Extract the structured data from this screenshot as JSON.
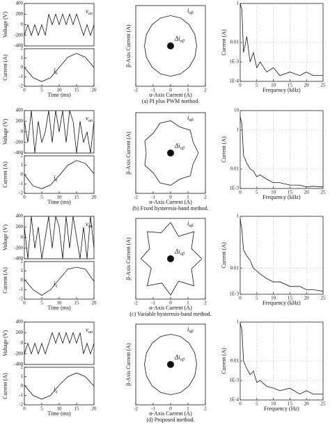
{
  "chart_data": [
    {
      "type": "line",
      "ylabel": "Voltage (V)",
      "xlim": [
        0,
        20
      ],
      "ylim": [
        -400,
        400
      ],
      "yticks": [
        -400,
        -200,
        0,
        200,
        400
      ],
      "series": [
        {
          "color": "#111",
          "x": [
            0,
            1,
            2,
            3,
            4,
            5,
            6,
            7,
            8,
            9,
            10,
            11,
            12,
            13,
            14,
            15,
            16,
            17,
            18,
            19,
            20
          ],
          "values": [
            -200,
            0,
            -200,
            0,
            -200,
            0,
            -200,
            200,
            0,
            200,
            0,
            200,
            0,
            200,
            0,
            200,
            0,
            -200,
            0,
            -200,
            0
          ]
        }
      ],
      "annotations": [
        {
          "text": "v",
          "sub": "an"
        }
      ]
    },
    {
      "type": "line",
      "ylabel": "Current (A)",
      "xlabel": "Time (ms)",
      "xlim": [
        0,
        20
      ],
      "ylim": [
        -2,
        2
      ],
      "xticks": [
        0,
        5,
        10,
        15,
        20
      ],
      "yticks": [
        -2,
        -1,
        0,
        1,
        2
      ],
      "series": [
        {
          "color": "#111",
          "x": [
            0,
            2.5,
            5,
            7.5,
            10,
            12.5,
            15,
            17.5,
            20
          ],
          "values": [
            0,
            -1.1,
            -1.5,
            -1.1,
            0,
            1.1,
            1.5,
            1.1,
            0
          ]
        }
      ],
      "annotations": [
        {
          "text": "i",
          "sub": "a"
        }
      ]
    },
    {
      "type": "line",
      "xlabel": "α-Axis Current (A)",
      "ylabel": "β-Axis Current (A)",
      "xlim": [
        -2,
        2
      ],
      "ylim": [
        -2,
        2
      ],
      "xticks": [
        -2,
        -1,
        0,
        1,
        2
      ],
      "series": [
        {
          "color": "#111",
          "x": [
            1.5,
            1.39,
            1.06,
            0.57,
            0,
            -0.57,
            -1.06,
            -1.39,
            -1.5,
            -1.39,
            -1.06,
            -0.57,
            0,
            0.57,
            1.06,
            1.39,
            1.5
          ],
          "values": [
            0,
            0.57,
            1.06,
            1.39,
            1.5,
            1.39,
            1.06,
            0.57,
            0,
            -0.57,
            -1.06,
            -1.39,
            -1.5,
            -1.39,
            -1.06,
            -0.57,
            0
          ]
        },
        {
          "color": "#111",
          "x": [
            0
          ],
          "values": [
            0
          ]
        }
      ],
      "annotations": [
        {
          "text": "i",
          "sub": "αβ"
        },
        {
          "text": "Δi",
          "sub": "αβ"
        }
      ]
    },
    {
      "type": "line",
      "ylabel": "Current (A)",
      "xlabel": "Frequency (kHz)",
      "ylog": true,
      "grid": true,
      "xlim": [
        0,
        25
      ],
      "ylim": [
        0.0001,
        1
      ],
      "xticks": [
        0,
        5,
        10,
        15,
        20,
        25
      ],
      "yticks": [
        {
          "value": 0.0001,
          "label": "1E-4"
        },
        {
          "value": 0.001,
          "label": "1E-3"
        },
        0.01,
        1
      ],
      "series": [
        {
          "color": "#111",
          "x": [
            0,
            0.5,
            1,
            2,
            3,
            4,
            5,
            6,
            8,
            10,
            12,
            15,
            18,
            20,
            22,
            25
          ],
          "values": [
            1,
            0.5,
            0.003,
            0.02,
            0.001,
            0.003,
            0.0005,
            0.001,
            0.0003,
            0.0005,
            0.0002,
            0.0003,
            0.0002,
            0.0003,
            0.0002,
            0.0002
          ]
        }
      ]
    },
    {
      "type": "line",
      "ylabel": "Voltage (V)",
      "xlim": [
        0,
        20
      ],
      "ylim": [
        -400,
        400
      ],
      "yticks": [
        -400,
        -200,
        0,
        200,
        400
      ],
      "series": [
        {
          "color": "#111",
          "x": [
            0,
            1,
            2,
            3,
            4,
            5,
            6,
            7,
            8,
            9,
            10,
            11,
            12,
            13,
            14,
            15,
            16,
            17,
            18,
            19,
            20
          ],
          "values": [
            200,
            -200,
            400,
            -400,
            200,
            -200,
            0,
            400,
            -200,
            400,
            0,
            400,
            -200,
            400,
            200,
            -400,
            200,
            -200,
            0,
            -400,
            200
          ]
        }
      ],
      "annotations": [
        {
          "text": "v",
          "sub": "an"
        }
      ]
    },
    {
      "type": "line",
      "ylabel": "Current (A)",
      "xlabel": "Time (ms)",
      "xlim": [
        0,
        20
      ],
      "ylim": [
        -2,
        2
      ],
      "xticks": [
        0,
        5,
        10,
        15,
        20
      ],
      "yticks": [
        -2,
        -1,
        0,
        1,
        2
      ],
      "series": [
        {
          "color": "#111",
          "x": [
            0,
            2.5,
            5,
            7.5,
            10,
            12.5,
            15,
            17.5,
            20
          ],
          "values": [
            0,
            -1.2,
            -1.5,
            -1.1,
            -0.1,
            1.0,
            1.5,
            1.2,
            0.1
          ]
        }
      ],
      "annotations": [
        {
          "text": "i",
          "sub": "a"
        }
      ]
    },
    {
      "type": "line",
      "xlabel": "α-Axis Current (A)",
      "ylabel": "β-Axis Current (A)",
      "xlim": [
        -2,
        2
      ],
      "ylim": [
        -2,
        2
      ],
      "xticks": [
        -2,
        -1,
        0,
        1,
        2
      ],
      "series": [
        {
          "color": "#111",
          "x": [
            1.6,
            1.29,
            1.13,
            0.54,
            0,
            -0.61,
            -0.99,
            -1.48,
            -1.4,
            -1.48,
            -0.99,
            -0.61,
            0,
            0.54,
            1.13,
            1.29,
            1.6
          ],
          "values": [
            0,
            0.54,
            1.13,
            1.29,
            1.6,
            1.48,
            0.99,
            0.61,
            0,
            -0.61,
            -0.99,
            -1.48,
            -1.6,
            -1.29,
            -1.13,
            -0.54,
            0
          ]
        },
        {
          "color": "#111",
          "x": [
            0
          ],
          "values": [
            0
          ]
        }
      ],
      "annotations": [
        {
          "text": "i",
          "sub": "αβ"
        },
        {
          "text": "Δi",
          "sub": "αβ"
        }
      ]
    },
    {
      "type": "line",
      "ylabel": "Current (A)",
      "xlabel": "Frequency (kHz)",
      "ylog": true,
      "grid": true,
      "xlim": [
        0,
        25
      ],
      "ylim": [
        0.001,
        10
      ],
      "xticks": [
        0,
        5,
        10,
        15,
        20,
        25
      ],
      "yticks": [
        {
          "value": 0.001,
          "label": "1E-3"
        },
        0.01,
        1,
        10
      ],
      "series": [
        {
          "color": "#111",
          "x": [
            0,
            0.5,
            1,
            2,
            3,
            4,
            5,
            6,
            8,
            10,
            12,
            15,
            18,
            20,
            22,
            25
          ],
          "values": [
            5,
            2,
            0.05,
            0.02,
            0.01,
            0.008,
            0.004,
            0.005,
            0.003,
            0.002,
            0.002,
            0.0015,
            0.0015,
            0.0012,
            0.0013,
            0.0012
          ]
        }
      ]
    },
    {
      "type": "line",
      "ylabel": "Voltage (V)",
      "xlim": [
        0,
        20
      ],
      "ylim": [
        -400,
        400
      ],
      "yticks": [
        -400,
        -200,
        0,
        200,
        400
      ],
      "series": [
        {
          "color": "#111",
          "x": [
            0,
            1,
            2,
            3,
            4,
            5,
            6,
            7,
            8,
            9,
            10,
            11,
            12,
            13,
            14,
            15,
            16,
            17,
            18,
            19,
            20
          ],
          "values": [
            200,
            -400,
            400,
            -200,
            200,
            -400,
            0,
            400,
            -200,
            400,
            200,
            -400,
            400,
            -200,
            400,
            0,
            -400,
            200,
            -400,
            400,
            -200
          ]
        }
      ],
      "annotations": [
        {
          "text": "v",
          "sub": "an"
        }
      ]
    },
    {
      "type": "line",
      "ylabel": "Current (A)",
      "xlabel": "Time (ms)",
      "xlim": [
        0,
        20
      ],
      "ylim": [
        -2,
        2
      ],
      "xticks": [
        0,
        5,
        10,
        15,
        20
      ],
      "yticks": [
        -2,
        -1,
        0,
        1,
        2
      ],
      "series": [
        {
          "color": "#111",
          "x": [
            0,
            2.5,
            5,
            7.5,
            10,
            12.5,
            15,
            17.5,
            20
          ],
          "values": [
            0.1,
            -1.0,
            -1.6,
            -1.0,
            0.1,
            1.2,
            1.4,
            1.2,
            -0.1
          ]
        }
      ],
      "annotations": [
        {
          "text": "i",
          "sub": "a"
        }
      ]
    },
    {
      "type": "line",
      "xlabel": "α-Axis Current (A)",
      "ylabel": "β-Axis Current (A)",
      "xlim": [
        -2,
        2
      ],
      "ylim": [
        -2,
        2
      ],
      "xticks": [
        -2,
        -1,
        0,
        1,
        2
      ],
      "series": [
        {
          "color": "#111",
          "x": [
            1.8,
            1.2,
            1.34,
            0.46,
            0,
            -0.54,
            -1.34,
            -1.2,
            -1.7,
            -1.11,
            -1.34,
            -0.5,
            0,
            0.46,
            1.34,
            1.2,
            1.8
          ],
          "values": [
            0,
            0.5,
            1.34,
            1.11,
            1.8,
            1.29,
            1.34,
            0.5,
            0,
            -0.46,
            -1.34,
            -1.2,
            -1.8,
            -1.11,
            -1.34,
            -0.5,
            0
          ]
        },
        {
          "color": "#111",
          "x": [
            0
          ],
          "values": [
            0
          ]
        }
      ],
      "annotations": [
        {
          "text": "i",
          "sub": "αβ"
        },
        {
          "text": "Δi",
          "sub": "αβ"
        }
      ]
    },
    {
      "type": "line",
      "ylabel": "Current (A)",
      "xlabel": "Frequency (kHz)",
      "ylog": true,
      "grid": true,
      "xlim": [
        0,
        25
      ],
      "ylim": [
        0.001,
        1
      ],
      "xticks": [
        0,
        5,
        10,
        15,
        20,
        25
      ],
      "yticks": [
        {
          "value": 0.001,
          "label": "1E-3"
        },
        0.01,
        1
      ],
      "series": [
        {
          "color": "#111",
          "x": [
            0,
            0.5,
            1,
            2,
            3,
            4,
            5,
            6,
            8,
            10,
            12,
            15,
            18,
            20,
            22,
            25
          ],
          "values": [
            0.8,
            0.3,
            0.05,
            0.03,
            0.02,
            0.01,
            0.008,
            0.006,
            0.004,
            0.003,
            0.003,
            0.002,
            0.002,
            0.0015,
            0.0015,
            0.0013
          ]
        }
      ]
    },
    {
      "type": "line",
      "ylabel": "Voltage (V)",
      "xlim": [
        0,
        20
      ],
      "ylim": [
        -400,
        400
      ],
      "yticks": [
        -400,
        -200,
        0,
        200,
        400
      ],
      "series": [
        {
          "color": "#111",
          "x": [
            0,
            1,
            2,
            3,
            4,
            5,
            6,
            7,
            8,
            9,
            10,
            11,
            12,
            13,
            14,
            15,
            16,
            17,
            18,
            19,
            20
          ],
          "values": [
            -200,
            0,
            -200,
            0,
            -200,
            0,
            -200,
            0,
            200,
            0,
            200,
            0,
            200,
            0,
            200,
            0,
            200,
            -200,
            0,
            -200,
            0
          ]
        }
      ],
      "annotations": [
        {
          "text": "v",
          "sub": "an"
        }
      ]
    },
    {
      "type": "line",
      "ylabel": "Current (A)",
      "xlabel": "Time (ms)",
      "xlim": [
        0,
        20
      ],
      "ylim": [
        -2,
        2
      ],
      "xticks": [
        0,
        5,
        10,
        15,
        20
      ],
      "yticks": [
        -2,
        -1,
        0,
        1,
        2
      ],
      "series": [
        {
          "color": "#111",
          "x": [
            0,
            2.5,
            5,
            7.5,
            10,
            12.5,
            15,
            17.5,
            20
          ],
          "values": [
            0.1,
            -1.0,
            -1.4,
            -1.0,
            0.1,
            1.0,
            1.4,
            1.0,
            0
          ]
        }
      ],
      "annotations": [
        {
          "text": "i",
          "sub": "a"
        }
      ]
    },
    {
      "type": "line",
      "xlabel": "α-Axis Current (A)",
      "ylabel": "β-Axis Current (A)",
      "xlim": [
        -2,
        2
      ],
      "ylim": [
        -2,
        2
      ],
      "xticks": [
        -2,
        -1,
        0,
        1,
        2
      ],
      "series": [
        {
          "color": "#111",
          "x": [
            1.5,
            1.39,
            1.06,
            0.57,
            0,
            -0.57,
            -1.06,
            -1.39,
            -1.5,
            -1.39,
            -1.06,
            -0.57,
            0,
            0.57,
            1.06,
            1.39,
            1.5
          ],
          "values": [
            0,
            0.57,
            1.06,
            1.39,
            1.5,
            1.39,
            1.06,
            0.57,
            0,
            -0.57,
            -1.06,
            -1.39,
            -1.5,
            -1.39,
            -1.06,
            -0.57,
            0
          ]
        },
        {
          "color": "#111",
          "x": [
            0
          ],
          "values": [
            0
          ]
        }
      ],
      "annotations": [
        {
          "text": "i",
          "sub": "αβ"
        },
        {
          "text": "Δi",
          "sub": "αβ"
        }
      ]
    },
    {
      "type": "line",
      "ylabel": "Current (A)",
      "xlabel": "Frequency (Hz)",
      "ylog": true,
      "grid": true,
      "xlim": [
        0,
        25
      ],
      "ylim": [
        0.0001,
        1
      ],
      "xticks": [
        0,
        5,
        10,
        15,
        20,
        25
      ],
      "yticks": [
        {
          "value": 0.0001,
          "label": "1E-4"
        },
        {
          "value": 0.001,
          "label": "1E-3"
        },
        0.01,
        1
      ],
      "series": [
        {
          "color": "#111",
          "x": [
            0,
            0.5,
            1,
            2,
            3,
            4,
            5,
            6,
            8,
            10,
            12,
            15,
            18,
            20,
            22,
            25
          ],
          "values": [
            0.9,
            0.4,
            0.01,
            0.004,
            0.002,
            0.003,
            0.0008,
            0.001,
            0.0005,
            0.0004,
            0.0003,
            0.0004,
            0.0002,
            0.0003,
            0.0002,
            0.0002
          ]
        }
      ]
    }
  ],
  "captions": [
    "(a) PI plus PWM method.",
    "(b) Fixed hysteresis-band method.",
    "(c) Variable hysteresis-band method.",
    "(d) Proposed method."
  ]
}
